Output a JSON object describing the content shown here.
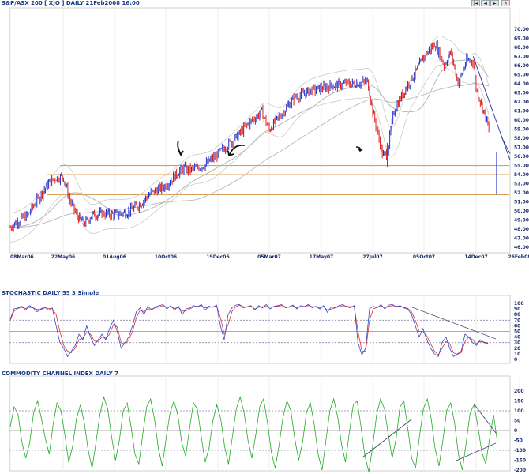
{
  "chart_data": [
    {
      "type": "candlestick",
      "title": "S&P/ASX 200 [ XJO ] DAILY 21Feb2008 16:00",
      "x_ticks": [
        "08Mar06",
        "22May06",
        "01Aug06",
        "10Oct06",
        "19Dec06",
        "05Mar07",
        "17May07",
        "27Jul07",
        "05Oct07",
        "14Dec07",
        "26Feb08"
      ],
      "y_ticks": [
        46,
        47,
        48,
        49,
        50,
        51,
        52,
        53,
        54,
        55,
        56,
        57,
        58,
        59,
        60,
        61,
        62,
        63,
        64,
        65,
        66,
        67,
        68,
        69,
        70
      ],
      "ylim": [
        45.5,
        70.5
      ],
      "horizontal_lines": [
        55.0,
        54.0,
        51.8
      ],
      "close_path": [
        [
          "08Mar06",
          48.2
        ],
        [
          "15Mar06",
          48.7
        ],
        [
          "01Apr06",
          49.5
        ],
        [
          "15Apr06",
          51.2
        ],
        [
          "01May06",
          53.0
        ],
        [
          "10May06",
          53.6
        ],
        [
          "22May06",
          53.8
        ],
        [
          "01Jun06",
          51.0
        ],
        [
          "10Jun06",
          49.5
        ],
        [
          "20Jun06",
          48.6
        ],
        [
          "01Jul06",
          49.6
        ],
        [
          "20Jul06",
          49.7
        ],
        [
          "01Aug06",
          49.6
        ],
        [
          "20Aug06",
          49.9
        ],
        [
          "05Sep06",
          50.8
        ],
        [
          "20Sep06",
          52.0
        ],
        [
          "10Oct06",
          52.8
        ],
        [
          "01Nov06",
          54.7
        ],
        [
          "10Nov06",
          54.5
        ],
        [
          "01Dec06",
          55.0
        ],
        [
          "19Dec06",
          56.3
        ],
        [
          "15Jan07",
          58.1
        ],
        [
          "01Feb07",
          59.5
        ],
        [
          "22Feb07",
          60.9
        ],
        [
          "05Mar07",
          58.9
        ],
        [
          "20Mar07",
          60.5
        ],
        [
          "10Apr07",
          62.5
        ],
        [
          "01May07",
          63.2
        ],
        [
          "17May07",
          63.5
        ],
        [
          "10Jun07",
          63.9
        ],
        [
          "01Jul07",
          64.0
        ],
        [
          "20Jul07",
          64.2
        ],
        [
          "27Jul07",
          61.0
        ],
        [
          "10Aug07",
          56.0
        ],
        [
          "16Aug07",
          56.5
        ],
        [
          "25Aug07",
          61.0
        ],
        [
          "10Sep07",
          63.5
        ],
        [
          "25Sep07",
          65.5
        ],
        [
          "05Oct07",
          67.0
        ],
        [
          "20Oct07",
          68.4
        ],
        [
          "01Nov07",
          66.0
        ],
        [
          "10Nov07",
          67.5
        ],
        [
          "20Nov07",
          64.0
        ],
        [
          "01Dec07",
          66.5
        ],
        [
          "10Dec07",
          66.5
        ],
        [
          "14Dec07",
          63.5
        ],
        [
          "01Jan08",
          60.0
        ],
        [
          "10Jan08",
          57.0
        ],
        [
          "18Jan08",
          52.0
        ],
        [
          "25Jan08",
          56.5
        ],
        [
          "01Feb08",
          58.0
        ],
        [
          "08Feb08",
          56.0
        ],
        [
          "15Feb08",
          57.0
        ],
        [
          "21Feb08",
          55.8
        ]
      ],
      "annotations": [
        "arrow-10Nov06",
        "arrow-19Dec06",
        "arrow-16Aug07",
        "trendline-down-Dec07"
      ]
    },
    {
      "type": "line",
      "title": "STOCHASTIC DAILY 55 3 Simple",
      "y_ticks": [
        0,
        10,
        20,
        30,
        40,
        50,
        60,
        70,
        80,
        90,
        100
      ],
      "ylim": [
        0,
        100
      ],
      "dotted_levels": [
        30,
        70
      ],
      "solid_level": 50,
      "k_series": [
        72,
        90,
        92,
        95,
        88,
        96,
        92,
        85,
        90,
        94,
        88,
        92,
        60,
        30,
        20,
        5,
        15,
        25,
        45,
        35,
        60,
        40,
        25,
        35,
        45,
        35,
        55,
        70,
        50,
        20,
        30,
        40,
        60,
        85,
        92,
        80,
        95,
        88,
        94,
        96,
        98,
        90,
        96,
        88,
        95,
        80,
        90,
        92,
        96,
        94,
        98,
        88,
        95,
        93,
        97,
        60,
        35,
        80,
        92,
        97,
        98,
        92,
        94,
        96,
        88,
        96,
        92,
        98,
        90,
        95,
        96,
        98,
        92,
        94,
        97,
        90,
        96,
        94,
        98,
        92,
        95,
        90,
        96,
        84,
        94,
        92,
        96,
        98,
        94,
        92,
        96,
        30,
        8,
        20,
        90,
        95,
        92,
        98,
        90,
        97,
        98,
        94,
        96,
        92,
        90,
        80,
        60,
        40,
        55,
        35,
        20,
        10,
        5,
        30,
        40,
        20,
        5,
        10,
        15,
        45,
        40,
        30,
        25,
        35,
        30,
        28
      ],
      "d_series": [
        70,
        86,
        91,
        93,
        91,
        93,
        92,
        89,
        89,
        92,
        91,
        91,
        80,
        50,
        25,
        15,
        12,
        20,
        35,
        38,
        48,
        45,
        33,
        32,
        40,
        38,
        45,
        62,
        58,
        30,
        27,
        35,
        50,
        75,
        88,
        85,
        90,
        90,
        92,
        94,
        96,
        93,
        94,
        91,
        93,
        86,
        87,
        90,
        94,
        95,
        96,
        92,
        93,
        94,
        95,
        75,
        45,
        62,
        85,
        94,
        97,
        94,
        94,
        95,
        90,
        93,
        94,
        95,
        93,
        94,
        95,
        96,
        94,
        93,
        95,
        92,
        94,
        95,
        96,
        94,
        94,
        92,
        94,
        88,
        90,
        92,
        94,
        96,
        95,
        94,
        95,
        50,
        15,
        15,
        70,
        90,
        93,
        95,
        93,
        95,
        96,
        95,
        95,
        93,
        91,
        85,
        70,
        50,
        50,
        42,
        28,
        15,
        8,
        20,
        32,
        28,
        12,
        9,
        12,
        32,
        40,
        35,
        28,
        32,
        31,
        29
      ]
    },
    {
      "type": "line",
      "title": "COMMODITY CHANNEL INDEX DAILY 7",
      "y_ticks": [
        -200,
        -150,
        -100,
        -50,
        0,
        50,
        100,
        150,
        200
      ],
      "ylim": [
        -230,
        230
      ],
      "dotted_levels": [
        -100,
        100
      ],
      "solid_level": 0,
      "series": [
        20,
        120,
        80,
        -60,
        -140,
        -60,
        90,
        150,
        60,
        -40,
        -120,
        30,
        140,
        100,
        -20,
        -160,
        -80,
        60,
        130,
        40,
        -100,
        -190,
        -60,
        80,
        170,
        110,
        -30,
        -150,
        -50,
        100,
        140,
        20,
        -120,
        -170,
        -20,
        120,
        160,
        60,
        -90,
        -180,
        -40,
        90,
        150,
        80,
        -60,
        -130,
        10,
        140,
        110,
        -30,
        -160,
        -90,
        50,
        130,
        60,
        -80,
        -170,
        -30,
        110,
        170,
        90,
        -50,
        -140,
        -20,
        120,
        160,
        40,
        -110,
        -190,
        -70,
        70,
        150,
        100,
        -40,
        -150,
        -60,
        90,
        140,
        30,
        -120,
        -200,
        -50,
        100,
        160,
        70,
        -70,
        -160,
        -10,
        130,
        150,
        20,
        -130,
        -210,
        -80,
        80,
        160,
        110,
        -20,
        -140,
        -40,
        120,
        150,
        10,
        -140,
        -190,
        -30,
        110,
        160,
        60,
        -90,
        -180,
        -50,
        100,
        140,
        40,
        -120,
        -200,
        -60,
        90,
        130,
        20,
        -110,
        -170,
        -40,
        80,
        -60
      ]
    }
  ]
}
